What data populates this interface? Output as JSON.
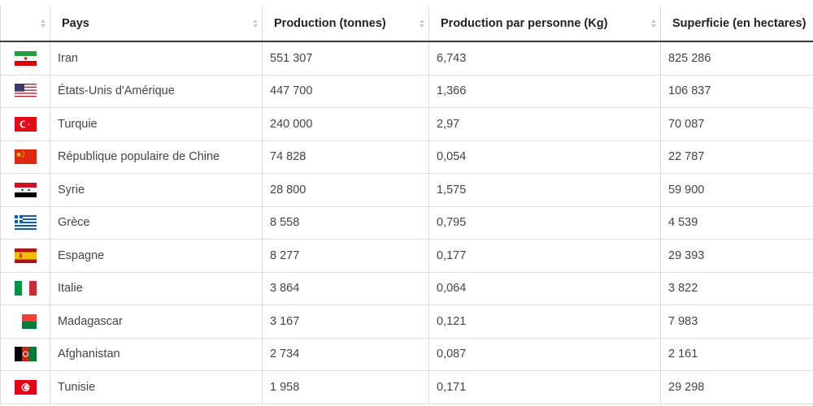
{
  "table": {
    "headers": [
      "",
      "Pays",
      "Production (tonnes)",
      "Production par personne (Kg)",
      "Superficie (en hectares)"
    ],
    "rows": [
      {
        "flag": "iran-flag-icon",
        "country": "Iran",
        "production": "551 307",
        "per_person": "6,743",
        "area": "825 286"
      },
      {
        "flag": "usa-flag-icon",
        "country": "États-Unis d'Amérique",
        "production": "447 700",
        "per_person": "1,366",
        "area": "106 837"
      },
      {
        "flag": "turkey-flag-icon",
        "country": "Turquie",
        "production": "240 000",
        "per_person": "2,97",
        "area": "70 087"
      },
      {
        "flag": "china-flag-icon",
        "country": "République populaire de Chine",
        "production": "74 828",
        "per_person": "0,054",
        "area": "22 787"
      },
      {
        "flag": "syria-flag-icon",
        "country": "Syrie",
        "production": "28 800",
        "per_person": "1,575",
        "area": "59 900"
      },
      {
        "flag": "greece-flag-icon",
        "country": "Grèce",
        "production": "8 558",
        "per_person": "0,795",
        "area": "4 539"
      },
      {
        "flag": "spain-flag-icon",
        "country": "Espagne",
        "production": "8 277",
        "per_person": "0,177",
        "area": "29 393"
      },
      {
        "flag": "italy-flag-icon",
        "country": "Italie",
        "production": "3 864",
        "per_person": "0,064",
        "area": "3 822"
      },
      {
        "flag": "madagascar-flag-icon",
        "country": "Madagascar",
        "production": "3 167",
        "per_person": "0,121",
        "area": "7 983"
      },
      {
        "flag": "afghanistan-flag-icon",
        "country": "Afghanistan",
        "production": "2 734",
        "per_person": "0,087",
        "area": "2 161"
      },
      {
        "flag": "tunisia-flag-icon",
        "country": "Tunisie",
        "production": "1 958",
        "per_person": "0,171",
        "area": "29 298"
      }
    ]
  },
  "colors": {
    "header_border": "#3a3a3a",
    "cell_border": "#dcdcdc",
    "text": "#444444"
  }
}
